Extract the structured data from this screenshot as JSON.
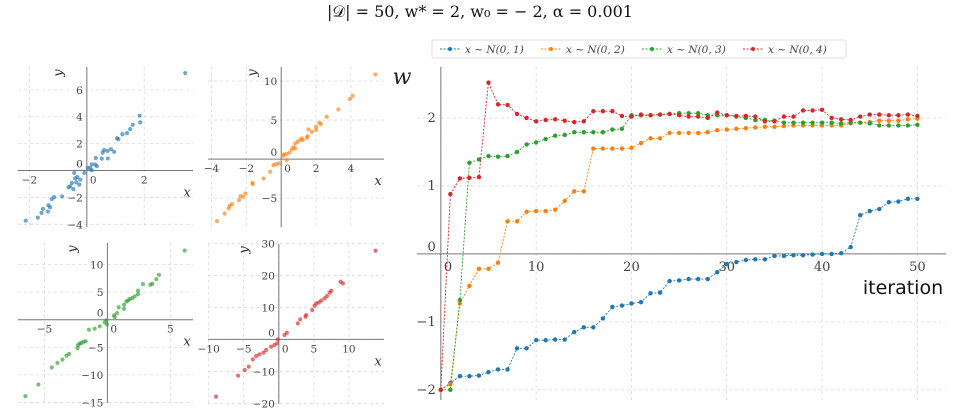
{
  "title": "|𝒟| = 50, w* = 2,    w₀ = − 2, α = 0.001",
  "chart_data": [
    {
      "type": "scatter",
      "xlabel": "x",
      "ylabel": "y",
      "color": "#1f77b4",
      "xlim": [
        -2.4,
        3.7
      ],
      "ylim": [
        -4.2,
        7.7
      ],
      "xticks": [
        -2,
        0,
        2
      ],
      "yticks": [
        -4,
        -2,
        0,
        2,
        4,
        6
      ],
      "grid": true,
      "points": [
        [
          3.43,
          7.25
        ],
        [
          1.84,
          4.08
        ],
        [
          1.86,
          3.58
        ],
        [
          1.6,
          3.4
        ],
        [
          1.51,
          3.08
        ],
        [
          1.4,
          2.78
        ],
        [
          1.24,
          2.7
        ],
        [
          1.1,
          2.33
        ],
        [
          1.05,
          2.4
        ],
        [
          0.95,
          1.4
        ],
        [
          0.84,
          1.58
        ],
        [
          0.72,
          1.45
        ],
        [
          0.6,
          1.53
        ],
        [
          0.55,
          1.33
        ],
        [
          0.73,
          0.9
        ],
        [
          0.52,
          0.88
        ],
        [
          0.31,
          0.93
        ],
        [
          0.35,
          0.33
        ],
        [
          0.29,
          0.45
        ],
        [
          0.17,
          0.45
        ],
        [
          0.12,
          0.2
        ],
        [
          0.17,
          0.03
        ],
        [
          0.03,
          0.2
        ],
        [
          -0.09,
          -0.18
        ],
        [
          -0.23,
          -0.68
        ],
        [
          -0.33,
          -0.48
        ],
        [
          -0.44,
          -0.18
        ],
        [
          -0.41,
          -0.58
        ],
        [
          -0.37,
          -0.88
        ],
        [
          -0.26,
          -1.05
        ],
        [
          -0.52,
          -0.93
        ],
        [
          -0.58,
          -1.18
        ],
        [
          -0.64,
          -1.25
        ],
        [
          -0.47,
          -1.38
        ],
        [
          -0.86,
          -1.93
        ],
        [
          -1.14,
          -1.98
        ],
        [
          -1.22,
          -2.13
        ],
        [
          -1.28,
          -2.73
        ],
        [
          -1.34,
          -2.58
        ],
        [
          -1.36,
          -3.05
        ],
        [
          -1.53,
          -2.85
        ],
        [
          -1.58,
          -3.15
        ],
        [
          -1.71,
          -3.5
        ],
        [
          -2.13,
          -3.73
        ]
      ]
    },
    {
      "type": "scatter",
      "xlabel": "x",
      "ylabel": "y",
      "color": "#ff7f0e",
      "xlim": [
        -4.2,
        5.9
      ],
      "ylim": [
        -8.7,
        11.8
      ],
      "xticks": [
        -4,
        -2,
        0,
        2,
        4
      ],
      "yticks": [
        -5,
        0,
        5,
        10
      ],
      "grid": true,
      "points": [
        [
          5.41,
          10.85
        ],
        [
          4.1,
          8.1
        ],
        [
          3.94,
          7.7
        ],
        [
          3.28,
          6.37
        ],
        [
          2.61,
          5.43
        ],
        [
          2.27,
          4.5
        ],
        [
          2.19,
          4.65
        ],
        [
          2.0,
          4.15
        ],
        [
          2.0,
          3.72
        ],
        [
          1.75,
          3.5
        ],
        [
          1.56,
          3.8
        ],
        [
          1.52,
          2.95
        ],
        [
          1.47,
          2.74
        ],
        [
          1.18,
          2.65
        ],
        [
          1.09,
          2.44
        ],
        [
          1.24,
          2.44
        ],
        [
          0.95,
          2.22
        ],
        [
          0.8,
          2.0
        ],
        [
          0.7,
          1.5
        ],
        [
          0.8,
          1.37
        ],
        [
          0.61,
          1.24
        ],
        [
          0.48,
          0.81
        ],
        [
          0.29,
          0.64
        ],
        [
          0.17,
          0.6
        ],
        [
          0.1,
          0.43
        ],
        [
          0.32,
          -0.13
        ],
        [
          -0.13,
          -0.56
        ],
        [
          -0.29,
          -0.64
        ],
        [
          -0.44,
          -0.77
        ],
        [
          -0.63,
          -1.62
        ],
        [
          -1.01,
          -2.48
        ],
        [
          -1.64,
          -3.03
        ],
        [
          -1.64,
          -3.2
        ],
        [
          -2.06,
          -4.4
        ],
        [
          -2.19,
          -4.83
        ],
        [
          -2.34,
          -4.74
        ],
        [
          -2.42,
          -5.26
        ],
        [
          -2.82,
          -5.77
        ],
        [
          -2.95,
          -5.98
        ],
        [
          -3.01,
          -6.32
        ],
        [
          -3.24,
          -6.97
        ],
        [
          -3.68,
          -7.95
        ]
      ]
    },
    {
      "type": "scatter",
      "xlabel": "x",
      "ylabel": "y",
      "color": "#2ca02c",
      "xlim": [
        -7.1,
        6.8
      ],
      "ylim": [
        -15.1,
        13.9
      ],
      "xticks": [
        -5,
        0,
        5
      ],
      "yticks": [
        -15,
        -10,
        -5,
        0,
        5,
        10
      ],
      "grid": true,
      "points": [
        [
          6.14,
          12.53
        ],
        [
          4.1,
          8.13
        ],
        [
          3.89,
          7.35
        ],
        [
          3.57,
          6.5
        ],
        [
          3.41,
          6.33
        ],
        [
          2.83,
          6.45
        ],
        [
          2.43,
          5.24
        ],
        [
          2.43,
          4.64
        ],
        [
          2.17,
          4.22
        ],
        [
          1.98,
          3.92
        ],
        [
          1.77,
          3.73
        ],
        [
          1.64,
          3.49
        ],
        [
          1.51,
          3.31
        ],
        [
          1.32,
          2.71
        ],
        [
          1.32,
          1.99
        ],
        [
          0.9,
          2.23
        ],
        [
          0.77,
          1.2
        ],
        [
          0.58,
          0.48
        ],
        [
          0.53,
          0.78
        ],
        [
          -0.08,
          -0.12
        ],
        [
          -0.21,
          -0.48
        ],
        [
          -0.03,
          -0.9
        ],
        [
          -0.61,
          -1.2
        ],
        [
          -1.01,
          -1.63
        ],
        [
          -1.46,
          -1.81
        ],
        [
          -1.72,
          -3.92
        ],
        [
          -1.88,
          -3.98
        ],
        [
          -2.06,
          -4.22
        ],
        [
          -2.2,
          -4.34
        ],
        [
          -2.33,
          -4.64
        ],
        [
          -2.38,
          -5.18
        ],
        [
          -3.04,
          -6.2
        ],
        [
          -3.25,
          -6.51
        ],
        [
          -3.57,
          -7.23
        ],
        [
          -3.97,
          -7.83
        ],
        [
          -4.42,
          -8.67
        ],
        [
          -5.48,
          -11.75
        ],
        [
          -6.51,
          -13.86
        ]
      ]
    },
    {
      "type": "scatter",
      "xlabel": "x",
      "ylabel": "y",
      "color": "#d62728",
      "xlim": [
        -10.1,
        15
      ],
      "ylim": [
        -20.2,
        29.8
      ],
      "xticks": [
        -10,
        -5,
        0,
        5,
        10
      ],
      "yticks": [
        -20,
        -10,
        0,
        10,
        20,
        30
      ],
      "grid": true,
      "points": [
        [
          13.8,
          27.7
        ],
        [
          9.14,
          17.5
        ],
        [
          8.81,
          18.0
        ],
        [
          7.48,
          15.2
        ],
        [
          7.24,
          14.6
        ],
        [
          6.86,
          13.5
        ],
        [
          6.52,
          12.8
        ],
        [
          6.05,
          12.1
        ],
        [
          5.71,
          11.5
        ],
        [
          5.33,
          11.25
        ],
        [
          5.1,
          10.5
        ],
        [
          4.76,
          9.17
        ],
        [
          3.9,
          7.6
        ],
        [
          3.81,
          7.08
        ],
        [
          3.05,
          6.25
        ],
        [
          2.71,
          5.0
        ],
        [
          1.14,
          2.08
        ],
        [
          0.81,
          1.35
        ],
        [
          -0.14,
          0
        ],
        [
          -0.24,
          -1.25
        ],
        [
          -0.62,
          -1.77
        ],
        [
          -1.1,
          -2.29
        ],
        [
          -1.81,
          -3.33
        ],
        [
          -2.19,
          -4.17
        ],
        [
          -2.76,
          -4.69
        ],
        [
          -3.24,
          -5.21
        ],
        [
          -3.71,
          -6.25
        ],
        [
          -4.29,
          -8.54
        ],
        [
          -4.86,
          -9.58
        ],
        [
          -5.81,
          -11.35
        ],
        [
          -8.95,
          -17.9
        ]
      ]
    },
    {
      "type": "line",
      "xlabel": "iteration",
      "ylabel": "w",
      "xlim": [
        -2.5,
        53
      ],
      "ylim": [
        -2.15,
        2.75
      ],
      "xticks": [
        0,
        10,
        20,
        30,
        40,
        50
      ],
      "yticks": [
        -2,
        -1,
        0,
        1,
        2
      ],
      "grid": true,
      "legend": "top",
      "series": [
        {
          "name": "x ∼ N(0, 1)",
          "color": "#1f77b4",
          "values": [
            -2,
            -1.9,
            -1.8,
            -1.8,
            -1.79,
            -1.74,
            -1.7,
            -1.7,
            -1.39,
            -1.39,
            -1.27,
            -1.27,
            -1.26,
            -1.26,
            -1.15,
            -1.08,
            -1.08,
            -0.95,
            -0.78,
            -0.76,
            -0.73,
            -0.71,
            -0.58,
            -0.57,
            -0.4,
            -0.39,
            -0.37,
            -0.37,
            -0.37,
            -0.27,
            -0.15,
            -0.12,
            -0.09,
            -0.08,
            -0.08,
            -0.03,
            -0.03,
            -0.02,
            -0.02,
            -0.01,
            0,
            0,
            0.01,
            0.1,
            0.57,
            0.63,
            0.66,
            0.76,
            0.77,
            0.81,
            0.81
          ]
        },
        {
          "name": "x ∼ N(0, 2)",
          "color": "#ff7f0e",
          "values": [
            -2,
            -1.92,
            -0.73,
            -0.47,
            -0.22,
            -0.22,
            -0.13,
            0.48,
            0.48,
            0.62,
            0.63,
            0.63,
            0.65,
            0.78,
            0.92,
            0.92,
            1.55,
            1.55,
            1.55,
            1.55,
            1.56,
            1.63,
            1.7,
            1.7,
            1.78,
            1.78,
            1.78,
            1.78,
            1.79,
            1.82,
            1.83,
            1.84,
            1.85,
            1.86,
            1.87,
            1.87,
            1.88,
            1.89,
            1.89,
            1.89,
            1.89,
            1.89,
            1.89,
            1.92,
            1.93,
            1.94,
            1.96,
            1.96,
            1.96,
            1.98,
            1.99
          ]
        },
        {
          "name": "x ∼ N(0, 3)",
          "color": "#2ca02c",
          "values": [
            -2,
            -2,
            -0.68,
            1.34,
            1.39,
            1.44,
            1.43,
            1.44,
            1.5,
            1.61,
            1.64,
            1.69,
            1.74,
            1.75,
            1.79,
            1.79,
            1.79,
            1.79,
            1.83,
            1.84,
            2.04,
            2.04,
            2.04,
            2.05,
            2.06,
            2.07,
            2.07,
            2.07,
            2.04,
            2.04,
            2.04,
            2.02,
            2.0,
            1.97,
            1.97,
            1.96,
            1.93,
            1.93,
            1.93,
            1.93,
            1.93,
            1.93,
            1.92,
            1.93,
            1.93,
            1.92,
            1.89,
            1.89,
            1.89,
            1.89,
            1.9
          ]
        },
        {
          "name": "x ∼ N(0, 4)",
          "color": "#d62728",
          "values": [
            -2,
            0.88,
            1.11,
            1.12,
            1.13,
            2.52,
            2.2,
            2.19,
            2.06,
            2.0,
            1.95,
            1.97,
            1.98,
            1.96,
            1.94,
            1.95,
            2.1,
            2.1,
            2.1,
            2.03,
            2.02,
            2.05,
            2.04,
            2.05,
            2.06,
            2.04,
            2.02,
            2.02,
            2.0,
            2.08,
            2.04,
            2.03,
            2.03,
            2.02,
            1.95,
            1.95,
            2.02,
            2.02,
            2.11,
            2.11,
            2.12,
            2.0,
            1.98,
            1.97,
            2.02,
            2.05,
            2.05,
            2.04,
            2.04,
            2.05,
            2.03
          ]
        }
      ]
    }
  ]
}
